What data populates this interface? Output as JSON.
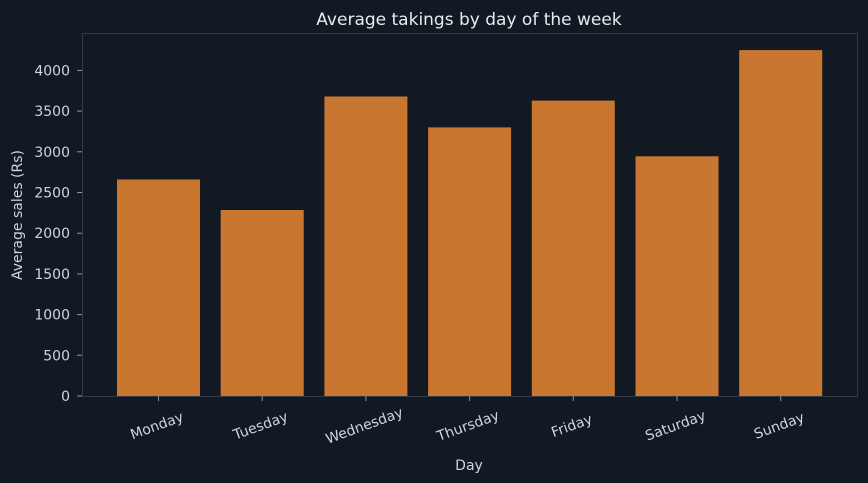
{
  "colors": {
    "background": "#121923",
    "bar": "#c87630",
    "text": "#cdd5de",
    "frame": "#2e3a47"
  },
  "chart_data": {
    "type": "bar",
    "title": "Average takings by day of the week",
    "xlabel": "Day",
    "ylabel": "Average sales (Rs)",
    "categories": [
      "Monday",
      "Tuesday",
      "Wednesday",
      "Thursday",
      "Friday",
      "Saturday",
      "Sunday"
    ],
    "values": [
      2660,
      2285,
      3680,
      3300,
      3630,
      2945,
      4250
    ],
    "ylim": [
      0,
      4460
    ],
    "yticks": [
      0,
      500,
      1000,
      1500,
      2000,
      2500,
      3000,
      3500,
      4000
    ],
    "grid": false,
    "legend": "none"
  }
}
